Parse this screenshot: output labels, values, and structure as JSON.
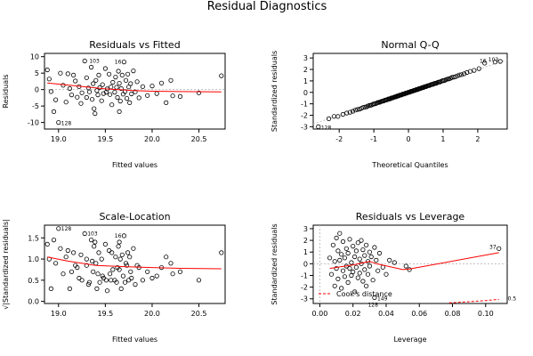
{
  "figure": {
    "title": "Residual Diagnostics",
    "colors": {
      "axis": "#000000",
      "points": "#000000",
      "smooth": "#ff0000",
      "guide": "#bfbfbf",
      "cooks": "#ff0000"
    }
  },
  "chart_data": [
    {
      "id": "residuals-vs-fitted",
      "type": "scatter",
      "title": "Residuals vs Fitted",
      "xlabel": "Fitted values",
      "ylabel": "Residuals",
      "xlim": [
        18.85,
        20.78
      ],
      "ylim": [
        -12,
        11
      ],
      "xticks": [
        19.0,
        19.5,
        20.0,
        20.5
      ],
      "xtick_labels": [
        "19.0",
        "19.5",
        "20.0",
        "20.5"
      ],
      "yticks": [
        -10,
        -5,
        0,
        5,
        10
      ],
      "ytick_labels": [
        "-10",
        "-5",
        "0",
        "5",
        "10"
      ],
      "reference_line": 0,
      "points": [
        [
          18.88,
          6.0
        ],
        [
          18.9,
          3.2
        ],
        [
          18.92,
          -0.6
        ],
        [
          18.95,
          -6.7
        ],
        [
          19.0,
          -10.0
        ],
        [
          18.97,
          -3.1
        ],
        [
          19.02,
          5.0
        ],
        [
          19.05,
          1.3
        ],
        [
          19.08,
          -3.8
        ],
        [
          19.1,
          4.8
        ],
        [
          19.12,
          0.3
        ],
        [
          19.14,
          -1.6
        ],
        [
          19.16,
          4.4
        ],
        [
          19.18,
          2.6
        ],
        [
          19.2,
          -2.3
        ],
        [
          19.22,
          0.9
        ],
        [
          19.24,
          -4.2
        ],
        [
          19.25,
          -1.0
        ],
        [
          19.28,
          8.7
        ],
        [
          19.3,
          3.6
        ],
        [
          19.3,
          -2.4
        ],
        [
          19.32,
          0.5
        ],
        [
          19.33,
          -0.7
        ],
        [
          19.35,
          6.8
        ],
        [
          19.36,
          -3.0
        ],
        [
          19.37,
          1.8
        ],
        [
          19.38,
          -5.8
        ],
        [
          19.39,
          -7.3
        ],
        [
          19.4,
          2.8
        ],
        [
          19.41,
          -0.3
        ],
        [
          19.42,
          -1.6
        ],
        [
          19.43,
          4.4
        ],
        [
          19.44,
          0.6
        ],
        [
          19.46,
          -3.4
        ],
        [
          19.47,
          1.5
        ],
        [
          19.48,
          -1.2
        ],
        [
          19.5,
          6.4
        ],
        [
          19.51,
          -0.8
        ],
        [
          19.52,
          0.2
        ],
        [
          19.54,
          4.7
        ],
        [
          19.55,
          -1.5
        ],
        [
          19.56,
          0.8
        ],
        [
          19.57,
          -4.6
        ],
        [
          19.58,
          2.2
        ],
        [
          19.6,
          -0.8
        ],
        [
          19.61,
          3.8
        ],
        [
          19.62,
          0.7
        ],
        [
          19.63,
          -2.4
        ],
        [
          19.64,
          5.6
        ],
        [
          19.65,
          -6.7
        ],
        [
          19.65,
          1.9
        ],
        [
          19.66,
          -3.5
        ],
        [
          19.67,
          0.3
        ],
        [
          19.68,
          4.4
        ],
        [
          19.69,
          -1.4
        ],
        [
          19.7,
          8.4
        ],
        [
          19.71,
          -0.6
        ],
        [
          19.72,
          2.8
        ],
        [
          19.73,
          -2.7
        ],
        [
          19.74,
          4.7
        ],
        [
          19.75,
          0.8
        ],
        [
          19.76,
          -4.0
        ],
        [
          19.77,
          1.8
        ],
        [
          19.78,
          -1.3
        ],
        [
          19.8,
          5.7
        ],
        [
          19.82,
          -0.7
        ],
        [
          19.84,
          2.4
        ],
        [
          19.86,
          -2.5
        ],
        [
          19.9,
          0.9
        ],
        [
          19.95,
          -1.8
        ],
        [
          20.0,
          1.1
        ],
        [
          20.05,
          -1.2
        ],
        [
          20.1,
          2.0
        ],
        [
          20.15,
          -4.0
        ],
        [
          20.2,
          2.8
        ],
        [
          20.22,
          -1.9
        ],
        [
          20.3,
          -2.1
        ],
        [
          20.5,
          -1.0
        ],
        [
          20.74,
          4.2
        ]
      ],
      "smooth_line": [
        [
          18.88,
          2.0
        ],
        [
          19.2,
          1.1
        ],
        [
          19.5,
          0.2
        ],
        [
          19.8,
          -0.3
        ],
        [
          20.0,
          -0.5
        ],
        [
          20.3,
          -0.6
        ],
        [
          20.74,
          -0.7
        ]
      ],
      "annotations": [
        {
          "text": "103",
          "x": 19.3,
          "y": 8.7,
          "dx": 3,
          "dy": 2
        },
        {
          "text": "16",
          "x": 19.7,
          "y": 8.4,
          "dx": -3,
          "dy": 2,
          "anchor": "end"
        },
        {
          "text": "128",
          "x": 19.0,
          "y": -10.0,
          "dx": 3,
          "dy": 3
        }
      ]
    },
    {
      "id": "normal-qq",
      "type": "scatter",
      "title": "Normal Q-Q",
      "xlabel": "Theoretical Quantiles",
      "ylabel": "Standardized residuals",
      "xlim": [
        -2.75,
        2.85
      ],
      "ylim": [
        -3.2,
        3.4
      ],
      "xticks": [
        -2,
        -1,
        0,
        1,
        2
      ],
      "xtick_labels": [
        "-2",
        "-1",
        "0",
        "1",
        "2"
      ],
      "yticks": [
        -3,
        -2,
        -1,
        0,
        1,
        2,
        3
      ],
      "ytick_labels": [
        "-3",
        "-2",
        "-1",
        "0",
        "1",
        "2",
        "3"
      ],
      "reference_line_identity": true,
      "qq_generated": {
        "n": 120,
        "lower_tail": [
          [
            -2.6,
            -3.0
          ],
          [
            -2.3,
            -2.3
          ],
          [
            -2.15,
            -2.1
          ]
        ],
        "upper_tail": [
          [
            2.2,
            2.55
          ],
          [
            2.5,
            2.65
          ],
          [
            2.65,
            2.7
          ]
        ]
      },
      "annotations": [
        {
          "text": "128",
          "x": -2.6,
          "y": -3.0,
          "dx": 3,
          "dy": 3
        },
        {
          "text": "16",
          "x": 2.3,
          "y": 2.6,
          "dx": -2,
          "dy": 0,
          "anchor": "end"
        },
        {
          "text": "103",
          "x": 2.65,
          "y": 2.7,
          "dx": -2,
          "dy": 0,
          "anchor": "end"
        }
      ]
    },
    {
      "id": "scale-location",
      "type": "scatter",
      "title": "Scale-Location",
      "xlabel": "Fitted values",
      "ylabel": "√|Standardized residuals|",
      "xlim": [
        18.85,
        20.78
      ],
      "ylim": [
        -0.05,
        1.8
      ],
      "xticks": [
        19.0,
        19.5,
        20.0,
        20.5
      ],
      "xtick_labels": [
        "19.0",
        "19.5",
        "20.0",
        "20.5"
      ],
      "yticks": [
        0.0,
        0.5,
        1.0,
        1.5
      ],
      "ytick_labels": [
        "0.0",
        "0.5",
        "1.0",
        "1.5"
      ],
      "points": [
        [
          18.88,
          1.35
        ],
        [
          18.9,
          1.0
        ],
        [
          18.92,
          0.3
        ],
        [
          18.95,
          1.45
        ],
        [
          19.0,
          1.72
        ],
        [
          18.97,
          0.9
        ],
        [
          19.02,
          1.25
        ],
        [
          19.05,
          0.65
        ],
        [
          19.08,
          1.05
        ],
        [
          19.1,
          1.2
        ],
        [
          19.12,
          0.3
        ],
        [
          19.14,
          0.7
        ],
        [
          19.16,
          1.15
        ],
        [
          19.18,
          0.85
        ],
        [
          19.2,
          0.8
        ],
        [
          19.22,
          0.55
        ],
        [
          19.24,
          1.1
        ],
        [
          19.25,
          0.5
        ],
        [
          19.28,
          1.6
        ],
        [
          19.3,
          1.0
        ],
        [
          19.3,
          0.85
        ],
        [
          19.32,
          0.4
        ],
        [
          19.33,
          0.45
        ],
        [
          19.35,
          1.45
        ],
        [
          19.36,
          0.95
        ],
        [
          19.37,
          0.7
        ],
        [
          19.38,
          1.3
        ],
        [
          19.39,
          1.4
        ],
        [
          19.4,
          0.9
        ],
        [
          19.41,
          0.3
        ],
        [
          19.42,
          0.65
        ],
        [
          19.43,
          1.15
        ],
        [
          19.44,
          0.45
        ],
        [
          19.46,
          1.0
        ],
        [
          19.47,
          0.6
        ],
        [
          19.48,
          0.55
        ],
        [
          19.5,
          1.35
        ],
        [
          19.51,
          0.5
        ],
        [
          19.52,
          0.25
        ],
        [
          19.54,
          1.2
        ],
        [
          19.55,
          0.65
        ],
        [
          19.56,
          0.5
        ],
        [
          19.57,
          1.15
        ],
        [
          19.58,
          0.75
        ],
        [
          19.6,
          0.5
        ],
        [
          19.61,
          1.05
        ],
        [
          19.62,
          0.45
        ],
        [
          19.63,
          0.8
        ],
        [
          19.64,
          1.3
        ],
        [
          19.65,
          1.4
        ],
        [
          19.65,
          0.75
        ],
        [
          19.66,
          1.0
        ],
        [
          19.67,
          0.3
        ],
        [
          19.68,
          1.1
        ],
        [
          19.69,
          0.6
        ],
        [
          19.7,
          1.55
        ],
        [
          19.71,
          0.45
        ],
        [
          19.72,
          0.9
        ],
        [
          19.73,
          0.85
        ],
        [
          19.74,
          1.15
        ],
        [
          19.75,
          0.5
        ],
        [
          19.76,
          1.05
        ],
        [
          19.77,
          0.7
        ],
        [
          19.78,
          0.55
        ],
        [
          19.8,
          1.25
        ],
        [
          19.82,
          0.4
        ],
        [
          19.84,
          0.85
        ],
        [
          19.86,
          0.8
        ],
        [
          19.9,
          0.5
        ],
        [
          19.95,
          0.7
        ],
        [
          20.0,
          0.55
        ],
        [
          20.05,
          0.6
        ],
        [
          20.1,
          0.8
        ],
        [
          20.15,
          1.05
        ],
        [
          20.2,
          0.9
        ],
        [
          20.22,
          0.65
        ],
        [
          20.3,
          0.7
        ],
        [
          20.5,
          0.5
        ],
        [
          20.74,
          1.15
        ]
      ],
      "smooth_line": [
        [
          18.88,
          1.05
        ],
        [
          19.1,
          0.95
        ],
        [
          19.4,
          0.85
        ],
        [
          19.7,
          0.82
        ],
        [
          20.0,
          0.8
        ],
        [
          20.3,
          0.78
        ],
        [
          20.74,
          0.77
        ]
      ],
      "annotations": [
        {
          "text": "128",
          "x": 19.0,
          "y": 1.72,
          "dx": 3,
          "dy": 2
        },
        {
          "text": "103",
          "x": 19.28,
          "y": 1.6,
          "dx": 3,
          "dy": 2
        },
        {
          "text": "16",
          "x": 19.7,
          "y": 1.55,
          "dx": -3,
          "dy": 2,
          "anchor": "end"
        }
      ]
    },
    {
      "id": "residuals-vs-leverage",
      "type": "scatter",
      "title": "Residuals vs Leverage",
      "xlabel": "Leverage",
      "ylabel": "Standardized residuals",
      "xlim": [
        -0.004,
        0.113
      ],
      "ylim": [
        -3.4,
        3.3
      ],
      "xticks": [
        0.0,
        0.02,
        0.04,
        0.06,
        0.08,
        0.1
      ],
      "xtick_labels": [
        "0.00",
        "0.02",
        "0.04",
        "0.06",
        "0.08",
        "0.10"
      ],
      "yticks": [
        -3,
        -2,
        -1,
        0,
        1,
        2,
        3
      ],
      "ytick_labels": [
        "-3",
        "-2",
        "-1",
        "0",
        "1",
        "2",
        "3"
      ],
      "guide_lines": {
        "h": 0,
        "v": 0
      },
      "points": [
        [
          0.006,
          0.5
        ],
        [
          0.007,
          -0.9
        ],
        [
          0.008,
          1.6
        ],
        [
          0.009,
          -1.9
        ],
        [
          0.009,
          0.2
        ],
        [
          0.01,
          2.2
        ],
        [
          0.01,
          -0.4
        ],
        [
          0.011,
          1.1
        ],
        [
          0.011,
          -1.3
        ],
        [
          0.012,
          2.6
        ],
        [
          0.012,
          0.3
        ],
        [
          0.013,
          -2.1
        ],
        [
          0.013,
          0.8
        ],
        [
          0.014,
          -0.6
        ],
        [
          0.014,
          1.9
        ],
        [
          0.015,
          -1.1
        ],
        [
          0.015,
          0.5
        ],
        [
          0.016,
          -0.2
        ],
        [
          0.016,
          1.3
        ],
        [
          0.017,
          -1.6
        ],
        [
          0.017,
          0.9
        ],
        [
          0.018,
          -0.4
        ],
        [
          0.018,
          2.1
        ],
        [
          0.019,
          0.1
        ],
        [
          0.019,
          -1.0
        ],
        [
          0.02,
          1.5
        ],
        [
          0.02,
          -0.7
        ],
        [
          0.021,
          0.6
        ],
        [
          0.021,
          -2.4
        ],
        [
          0.022,
          1.1
        ],
        [
          0.022,
          -0.3
        ],
        [
          0.023,
          1.8
        ],
        [
          0.023,
          -1.2
        ],
        [
          0.024,
          0.4
        ],
        [
          0.024,
          -0.8
        ],
        [
          0.025,
          2.0
        ],
        [
          0.025,
          0.0
        ],
        [
          0.026,
          -1.5
        ],
        [
          0.026,
          1.2
        ],
        [
          0.027,
          -0.5
        ],
        [
          0.027,
          0.7
        ],
        [
          0.028,
          -1.9
        ],
        [
          0.028,
          1.6
        ],
        [
          0.029,
          0.2
        ],
        [
          0.029,
          -0.9
        ],
        [
          0.03,
          1.0
        ],
        [
          0.03,
          -0.2
        ],
        [
          0.031,
          0.6
        ],
        [
          0.032,
          -1.4
        ],
        [
          0.033,
          1.4
        ],
        [
          0.033,
          -2.9
        ],
        [
          0.034,
          0.3
        ],
        [
          0.035,
          -0.6
        ],
        [
          0.036,
          0.9
        ],
        [
          0.038,
          -0.3
        ],
        [
          0.04,
          -0.9
        ],
        [
          0.042,
          0.3
        ],
        [
          0.045,
          0.1
        ],
        [
          0.052,
          -0.2
        ],
        [
          0.054,
          -0.5
        ],
        [
          0.108,
          1.3
        ]
      ],
      "smooth_line": [
        [
          0.006,
          -0.4
        ],
        [
          0.02,
          -0.1
        ],
        [
          0.03,
          0.2
        ],
        [
          0.034,
          0.0
        ],
        [
          0.05,
          -0.5
        ],
        [
          0.054,
          -0.45
        ],
        [
          0.108,
          0.95
        ]
      ],
      "cooks_distance_line": [
        [
          0.078,
          -3.35
        ],
        [
          0.09,
          -3.25
        ],
        [
          0.1,
          -3.15
        ],
        [
          0.108,
          -3.05
        ]
      ],
      "cooks_distance_level": "0.5",
      "legend": {
        "label": "Cook's distance",
        "placement": "bottom-left"
      },
      "annotations": [
        {
          "text": "37",
          "x": 0.108,
          "y": 1.3,
          "dx": -3,
          "dy": 0,
          "anchor": "end"
        },
        {
          "text": "149",
          "x": 0.033,
          "y": -2.9,
          "dx": 3,
          "dy": 3
        },
        {
          "text": "128",
          "x": 0.029,
          "y": -2.9,
          "dx": 0,
          "dy": 10
        }
      ]
    }
  ]
}
